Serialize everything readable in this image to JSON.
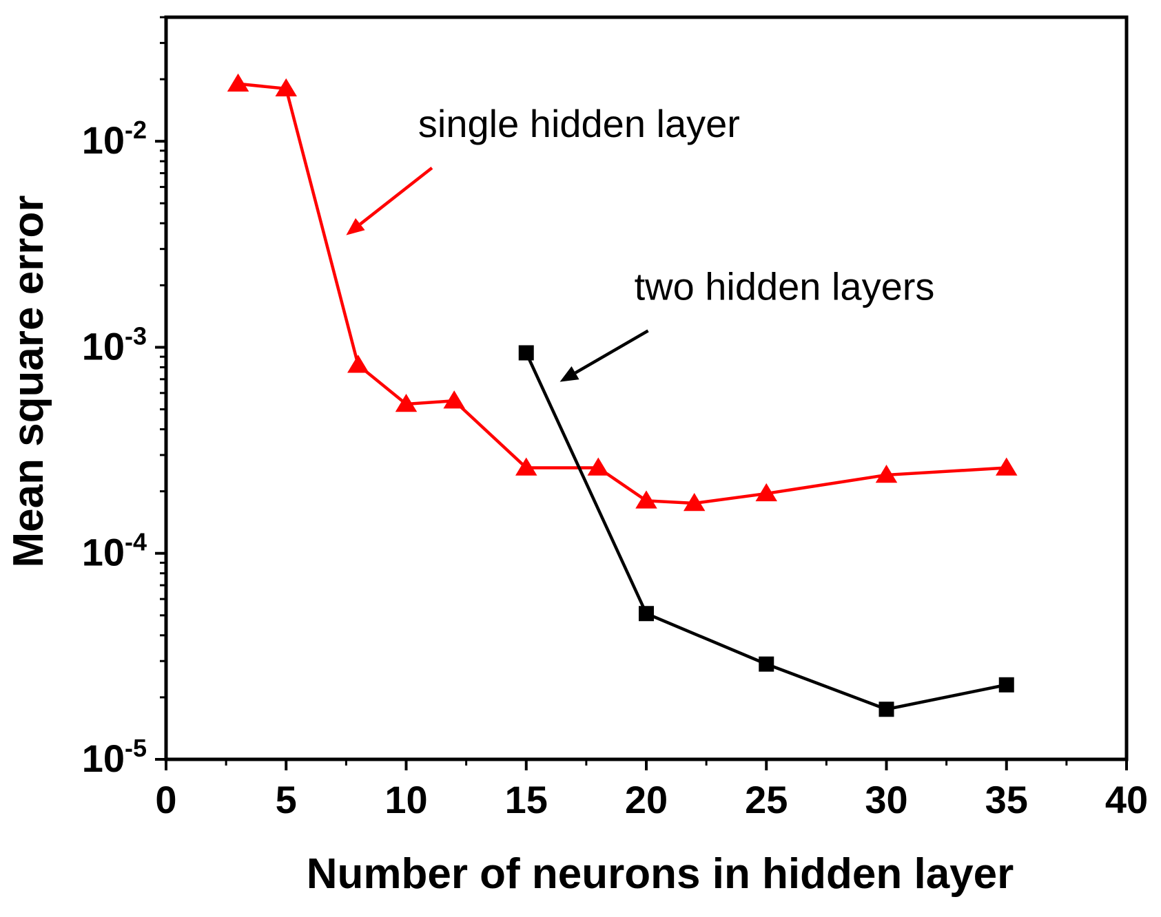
{
  "chart_data": {
    "type": "line",
    "xlabel": "Number of neurons in hidden layer",
    "ylabel": "Mean square error",
    "xlim": [
      0,
      40
    ],
    "ylim": [
      1e-05,
      0.04
    ],
    "yscale": "log",
    "grid": false,
    "x_ticks": [
      "0",
      "5",
      "10",
      "15",
      "20",
      "25",
      "30",
      "35",
      "40"
    ],
    "x_tick_values": [
      0,
      5,
      10,
      15,
      20,
      25,
      30,
      35,
      40
    ],
    "y_ticks": [
      {
        "base": "10",
        "exp": "-5",
        "value": 1e-05
      },
      {
        "base": "10",
        "exp": "-4",
        "value": 0.0001
      },
      {
        "base": "10",
        "exp": "-3",
        "value": 0.001
      },
      {
        "base": "10",
        "exp": "-2",
        "value": 0.01
      }
    ],
    "series": [
      {
        "color": "#ff0000",
        "marker": "triangle",
        "x": [
          3,
          5,
          8,
          10,
          12,
          15,
          18,
          20,
          22,
          25,
          30,
          35
        ],
        "y": [
          0.019,
          0.018,
          0.00082,
          0.00053,
          0.00055,
          0.00026,
          0.00026,
          0.00018,
          0.000175,
          0.000195,
          0.00024,
          0.00026
        ]
      },
      {
        "color": "#000000",
        "marker": "square",
        "x": [
          15,
          20,
          25,
          30,
          35
        ],
        "y": [
          0.00094,
          5.1e-05,
          2.9e-05,
          1.75e-05,
          2.3e-05
        ]
      }
    ],
    "annotations": [
      {
        "text": "single hidden layer",
        "color": "#000000",
        "arrow_color": "#ff0000",
        "target_x": 7.5,
        "target_y": 0.0035,
        "text_x": 10.5,
        "text_y": 0.0105
      },
      {
        "text": "two hidden layers",
        "color": "#000000",
        "arrow_color": "#000000",
        "target_x": 16.4,
        "target_y": 0.00068,
        "text_x": 19.5,
        "text_y": 0.0017
      }
    ]
  }
}
